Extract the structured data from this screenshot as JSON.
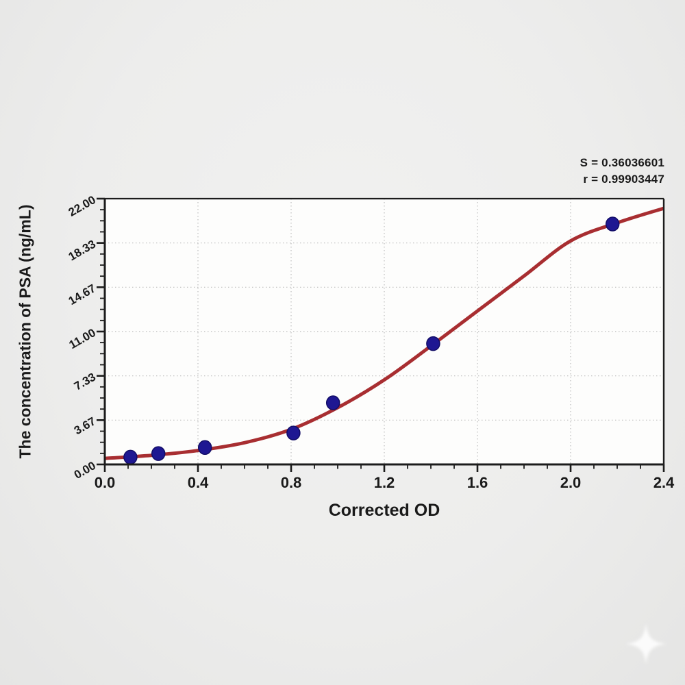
{
  "annotation": {
    "line1": "S = 0.36036601",
    "line2": "r = 0.99903447"
  },
  "chart_data": {
    "type": "scatter",
    "title": "",
    "xlabel": "Corrected OD",
    "ylabel": "The concentration of PSA (ng/mL)",
    "xlim": [
      0.0,
      2.4
    ],
    "ylim": [
      0.0,
      22.0
    ],
    "x_tick_labels": [
      "0.0",
      "0.4",
      "0.8",
      "1.2",
      "1.6",
      "2.0",
      "2.4"
    ],
    "x_tick_values": [
      0.0,
      0.4,
      0.8,
      1.2,
      1.6,
      2.0,
      2.4
    ],
    "y_tick_labels": [
      "0.00",
      "3.67",
      "7.33",
      "11.00",
      "14.67",
      "18.33",
      "22.00"
    ],
    "y_tick_values": [
      0.0,
      3.667,
      7.333,
      11.0,
      14.667,
      18.333,
      22.0
    ],
    "x_minor_step": 0.1,
    "y_minor_step": 0.9167,
    "grid": {
      "style": "dotted",
      "at_major_ticks": true
    },
    "legend_position": "none",
    "series": [
      {
        "name": "standard-points",
        "type": "scatter",
        "color": "#1e1792",
        "points": [
          [
            0.11,
            0.6
          ],
          [
            0.23,
            0.9
          ],
          [
            0.43,
            1.4
          ],
          [
            0.81,
            2.6
          ],
          [
            0.98,
            5.1
          ],
          [
            1.41,
            10.0
          ],
          [
            2.18,
            19.9
          ]
        ]
      },
      {
        "name": "4pl-fit-curve",
        "type": "line",
        "color": "#a82e31",
        "points": [
          [
            0.0,
            0.5
          ],
          [
            0.2,
            0.75
          ],
          [
            0.4,
            1.15
          ],
          [
            0.6,
            1.8
          ],
          [
            0.8,
            2.9
          ],
          [
            1.0,
            4.7
          ],
          [
            1.2,
            7.0
          ],
          [
            1.4,
            9.8
          ],
          [
            1.6,
            12.7
          ],
          [
            1.8,
            15.6
          ],
          [
            2.0,
            18.5
          ],
          [
            2.2,
            20.0
          ],
          [
            2.4,
            21.2
          ]
        ]
      }
    ],
    "fit_stats": {
      "S": "0.36036601",
      "r": "0.99903447"
    }
  },
  "colors": {
    "axis": "#1c1c1c",
    "grid": "#bdbdbd",
    "plot_background": "#fdfdfc",
    "text": "#1a1a1a",
    "point_fill": "#1e1792",
    "point_stroke": "#120d66",
    "curve": "#a82e31"
  },
  "watermark": {
    "icon": "sparkle",
    "color": "#ffffff"
  }
}
